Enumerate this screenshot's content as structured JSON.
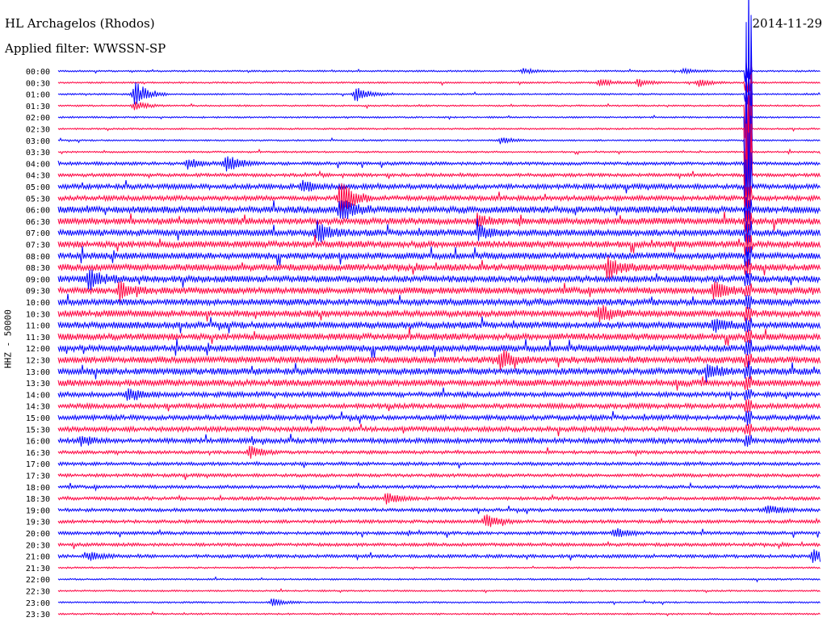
{
  "header": {
    "station": "HL Archagelos (Rhodos)",
    "filter": "Applied filter: WWSSN-SP",
    "date": "2014-11-29"
  },
  "chart_data": {
    "type": "line",
    "title": "HL Archagelos (Rhodos)",
    "subtitle": "Applied filter: WWSSN-SP",
    "date": "2014-11-29",
    "ylabel": "HHZ - 50000",
    "row_labels": [
      "00:00",
      "00:30",
      "01:00",
      "01:30",
      "02:00",
      "02:30",
      "03:00",
      "03:30",
      "04:00",
      "04:30",
      "05:00",
      "05:30",
      "06:00",
      "06:30",
      "07:00",
      "07:30",
      "08:00",
      "08:30",
      "09:00",
      "09:30",
      "10:00",
      "10:30",
      "11:00",
      "11:30",
      "12:00",
      "12:30",
      "13:00",
      "13:30",
      "14:00",
      "14:30",
      "15:00",
      "15:30",
      "16:00",
      "16:30",
      "17:00",
      "17:30",
      "18:00",
      "18:30",
      "19:00",
      "19:30",
      "20:00",
      "20:30",
      "21:00",
      "21:30",
      "22:00",
      "22:30",
      "23:00",
      "23:30"
    ],
    "series_colors": [
      "#0000ff",
      "#ff0040"
    ],
    "noise_amplitude": [
      1,
      1,
      1,
      1,
      1,
      1,
      1,
      1,
      2,
      2,
      3,
      3,
      4,
      4,
      4,
      4,
      4,
      4,
      4,
      4,
      4,
      4,
      4,
      4,
      4,
      4,
      4,
      4,
      3,
      3,
      3,
      3,
      3,
      2,
      2,
      2,
      2,
      2,
      2,
      2,
      2,
      2,
      2,
      1,
      1,
      1,
      1,
      1
    ],
    "events": [
      {
        "row": 0,
        "x": 0.61,
        "amp": 4
      },
      {
        "row": 0,
        "x": 0.82,
        "amp": 3
      },
      {
        "row": 1,
        "x": 0.71,
        "amp": 6
      },
      {
        "row": 1,
        "x": 0.76,
        "amp": 5
      },
      {
        "row": 1,
        "x": 0.84,
        "amp": 5
      },
      {
        "row": 2,
        "x": 0.1,
        "amp": 18
      },
      {
        "row": 2,
        "x": 0.39,
        "amp": 10
      },
      {
        "row": 3,
        "x": 0.1,
        "amp": 6
      },
      {
        "row": 6,
        "x": 0.58,
        "amp": 4
      },
      {
        "row": 8,
        "x": 0.22,
        "amp": 14
      },
      {
        "row": 8,
        "x": 0.17,
        "amp": 7
      },
      {
        "row": 10,
        "x": 0.32,
        "amp": 8
      },
      {
        "row": 11,
        "x": 0.37,
        "amp": 26
      },
      {
        "row": 12,
        "x": 0.37,
        "amp": 18
      },
      {
        "row": 13,
        "x": 0.55,
        "amp": 8
      },
      {
        "row": 14,
        "x": 0.34,
        "amp": 14
      },
      {
        "row": 14,
        "x": 0.55,
        "amp": 10
      },
      {
        "row": 17,
        "x": 0.72,
        "amp": 14
      },
      {
        "row": 18,
        "x": 0.04,
        "amp": 14
      },
      {
        "row": 19,
        "x": 0.08,
        "amp": 12
      },
      {
        "row": 19,
        "x": 0.86,
        "amp": 12
      },
      {
        "row": 21,
        "x": 0.71,
        "amp": 12
      },
      {
        "row": 22,
        "x": 0.86,
        "amp": 10
      },
      {
        "row": 25,
        "x": 0.58,
        "amp": 12
      },
      {
        "row": 26,
        "x": 0.85,
        "amp": 10
      },
      {
        "row": 28,
        "x": 0.09,
        "amp": 8
      },
      {
        "row": 32,
        "x": 0.03,
        "amp": 6
      },
      {
        "row": 33,
        "x": 0.25,
        "amp": 8
      },
      {
        "row": 37,
        "x": 0.43,
        "amp": 8
      },
      {
        "row": 38,
        "x": 0.93,
        "amp": 8
      },
      {
        "row": 39,
        "x": 0.56,
        "amp": 10
      },
      {
        "row": 40,
        "x": 0.73,
        "amp": 7
      },
      {
        "row": 42,
        "x": 0.04,
        "amp": 6
      },
      {
        "row": 42,
        "x": 0.99,
        "amp": 10
      },
      {
        "row": 46,
        "x": 0.28,
        "amp": 5
      }
    ],
    "major_event": {
      "start_row": 0,
      "end_row": 32,
      "x": 0.905,
      "peak_row": 4,
      "peak_amp": 200
    },
    "grid": false
  }
}
